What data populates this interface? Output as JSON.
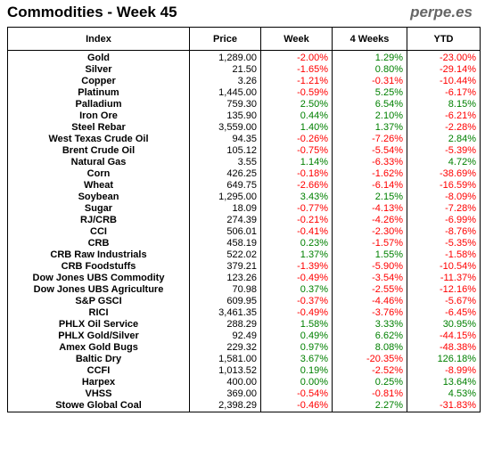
{
  "title": "Commodities - Week 45",
  "brand": "perpe.es",
  "columns": [
    "Index",
    "Price",
    "Week",
    "4 Weeks",
    "YTD"
  ],
  "colors": {
    "positive": "#008000",
    "negative": "#ff0000"
  },
  "chart_data": {
    "type": "table",
    "columns": [
      "Index",
      "Price",
      "Week",
      "4 Weeks",
      "YTD"
    ],
    "rows": [
      [
        "Gold",
        "1,289.00",
        "-2.00%",
        "1.29%",
        "-23.00%"
      ],
      [
        "Silver",
        "21.50",
        "-1.65%",
        "0.80%",
        "-29.14%"
      ],
      [
        "Copper",
        "3.26",
        "-1.21%",
        "-0.31%",
        "-10.44%"
      ],
      [
        "Platinum",
        "1,445.00",
        "-0.59%",
        "5.25%",
        "-6.17%"
      ],
      [
        "Palladium",
        "759.30",
        "2.50%",
        "6.54%",
        "8.15%"
      ],
      [
        "Iron Ore",
        "135.90",
        "0.44%",
        "2.10%",
        "-6.21%"
      ],
      [
        "Steel Rebar",
        "3,559.00",
        "1.40%",
        "1.37%",
        "-2.28%"
      ],
      [
        "West Texas Crude Oil",
        "94.35",
        "-0.26%",
        "-7.26%",
        "2.84%"
      ],
      [
        "Brent Crude Oil",
        "105.12",
        "-0.75%",
        "-5.54%",
        "-5.39%"
      ],
      [
        "Natural Gas",
        "3.55",
        "1.14%",
        "-6.33%",
        "4.72%"
      ],
      [
        "Corn",
        "426.25",
        "-0.18%",
        "-1.62%",
        "-38.69%"
      ],
      [
        "Wheat",
        "649.75",
        "-2.66%",
        "-6.14%",
        "-16.59%"
      ],
      [
        "Soybean",
        "1,295.00",
        "3.43%",
        "2.15%",
        "-8.09%"
      ],
      [
        "Sugar",
        "18.09",
        "-0.77%",
        "-4.13%",
        "-7.28%"
      ],
      [
        "RJ/CRB",
        "274.39",
        "-0.21%",
        "-4.26%",
        "-6.99%"
      ],
      [
        "CCI",
        "506.01",
        "-0.41%",
        "-2.30%",
        "-8.76%"
      ],
      [
        "CRB",
        "458.19",
        "0.23%",
        "-1.57%",
        "-5.35%"
      ],
      [
        "CRB Raw Industrials",
        "522.02",
        "1.37%",
        "1.55%",
        "-1.58%"
      ],
      [
        "CRB Foodstuffs",
        "379.21",
        "-1.39%",
        "-5.90%",
        "-10.54%"
      ],
      [
        "Dow Jones UBS Commodity",
        "123.26",
        "-0.49%",
        "-3.54%",
        "-11.37%"
      ],
      [
        "Dow Jones UBS Agriculture",
        "70.98",
        "0.37%",
        "-2.55%",
        "-12.16%"
      ],
      [
        "S&P GSCI",
        "609.95",
        "-0.37%",
        "-4.46%",
        "-5.67%"
      ],
      [
        "RICI",
        "3,461.35",
        "-0.49%",
        "-3.76%",
        "-6.45%"
      ],
      [
        "PHLX Oil Service",
        "288.29",
        "1.58%",
        "3.33%",
        "30.95%"
      ],
      [
        "PHLX Gold/Silver",
        "92.49",
        "0.49%",
        "6.62%",
        "-44.15%"
      ],
      [
        "Amex Gold Bugs",
        "229.32",
        "0.97%",
        "8.08%",
        "-48.38%"
      ],
      [
        "Baltic Dry",
        "1,581.00",
        "3.67%",
        "-20.35%",
        "126.18%"
      ],
      [
        "CCFI",
        "1,013.52",
        "0.19%",
        "-2.52%",
        "-8.99%"
      ],
      [
        "Harpex",
        "400.00",
        "0.00%",
        "0.25%",
        "13.64%"
      ],
      [
        "VHSS",
        "369.00",
        "-0.54%",
        "-0.81%",
        "4.53%"
      ],
      [
        "Stowe Global Coal",
        "2,398.29",
        "-0.46%",
        "2.27%",
        "-31.83%"
      ]
    ]
  }
}
